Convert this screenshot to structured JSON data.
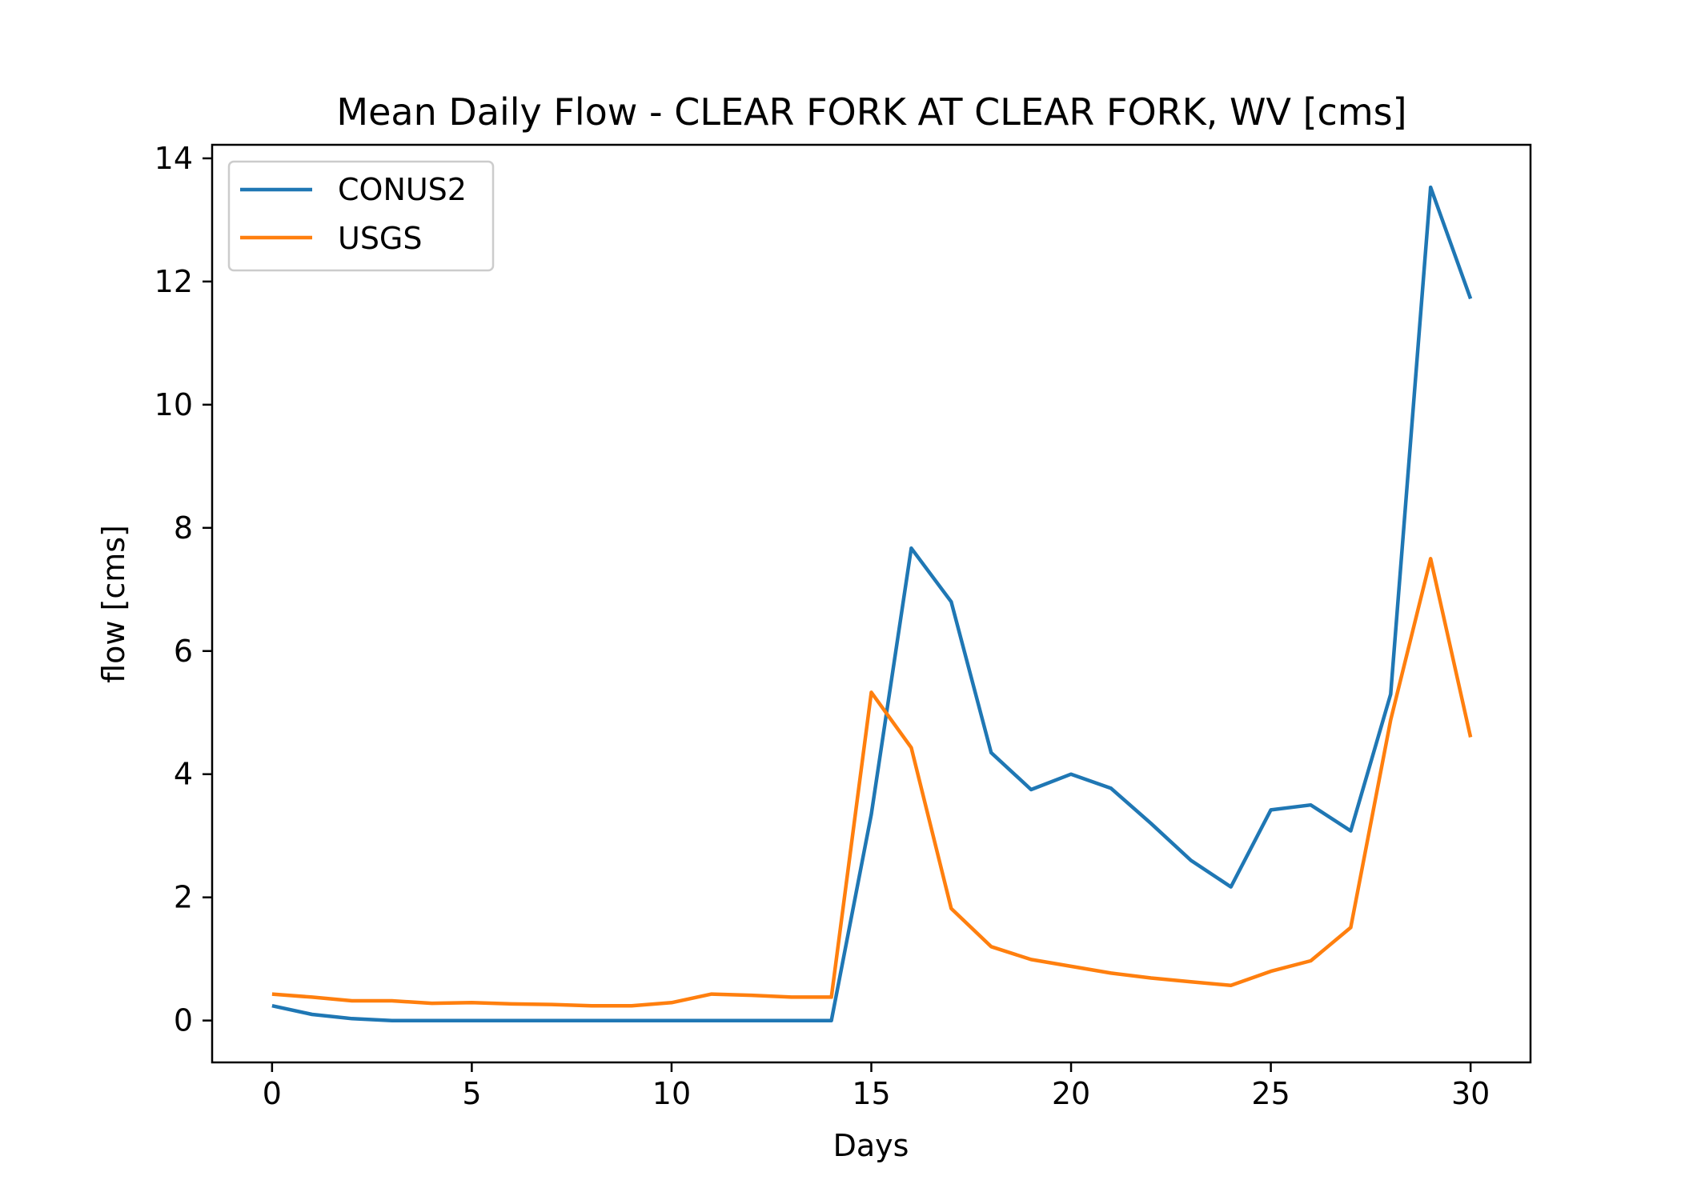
{
  "chart_data": {
    "type": "line",
    "title": "Mean Daily Flow - CLEAR FORK AT CLEAR FORK, WV [cms]",
    "xlabel": "Days",
    "ylabel": "flow [cms]",
    "xlim": [
      -1.5,
      31.5
    ],
    "ylim": [
      -0.68,
      14.22
    ],
    "xticks": [
      0,
      5,
      10,
      15,
      20,
      25,
      30
    ],
    "yticks": [
      0,
      2,
      4,
      6,
      8,
      10,
      12,
      14
    ],
    "grid": false,
    "legend_position": "upper left",
    "x": [
      0,
      1,
      2,
      3,
      4,
      5,
      6,
      7,
      8,
      9,
      10,
      11,
      12,
      13,
      14,
      15,
      16,
      17,
      18,
      19,
      20,
      21,
      22,
      23,
      24,
      25,
      26,
      27,
      28,
      29,
      30
    ],
    "series": [
      {
        "name": "CONUS2",
        "color": "#1f77b4",
        "values": [
          0.24,
          0.1,
          0.03,
          0.0,
          0.0,
          0.0,
          0.0,
          0.0,
          0.0,
          0.0,
          0.0,
          0.0,
          0.0,
          0.0,
          0.0,
          3.35,
          7.67,
          6.8,
          4.35,
          3.75,
          4.0,
          3.77,
          3.2,
          2.6,
          2.17,
          3.42,
          3.5,
          3.08,
          5.3,
          13.53,
          11.72
        ]
      },
      {
        "name": "USGS",
        "color": "#ff7f0e",
        "values": [
          0.43,
          0.38,
          0.32,
          0.32,
          0.28,
          0.29,
          0.27,
          0.26,
          0.24,
          0.24,
          0.29,
          0.43,
          0.41,
          0.38,
          0.38,
          5.33,
          4.43,
          1.82,
          1.2,
          0.99,
          0.88,
          0.77,
          0.69,
          0.63,
          0.57,
          0.8,
          0.97,
          1.51,
          4.88,
          7.5,
          4.6
        ]
      }
    ]
  }
}
